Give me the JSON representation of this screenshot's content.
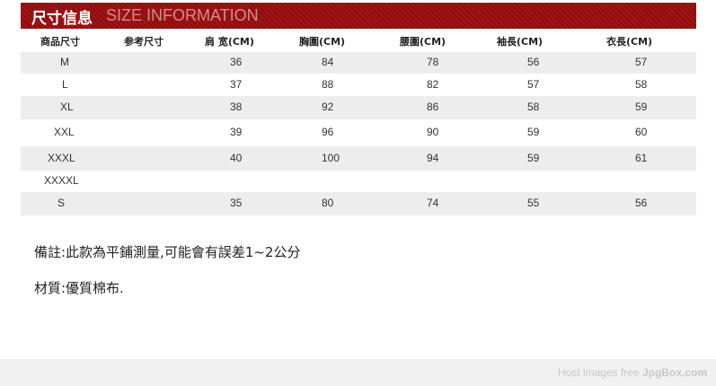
{
  "banner": {
    "title_cn": "尺寸信息",
    "title_en": "SIZE INFORMATION",
    "color": "#9a1214"
  },
  "columns": [
    "商品尺寸",
    "参考尺寸",
    "肩 宽(CM)",
    "胸圍(CM)",
    "腰圍(CM)",
    "袖長(CM)",
    "衣長(CM)"
  ],
  "rows": [
    {
      "size": "M",
      "shoulder": "36",
      "chest": "84",
      "waist": "78",
      "sleeve": "56",
      "length": "57"
    },
    {
      "size": "L",
      "shoulder": "37",
      "chest": "88",
      "waist": "82",
      "sleeve": "57",
      "length": "58"
    },
    {
      "size": "XL",
      "shoulder": "38",
      "chest": "92",
      "waist": "86",
      "sleeve": "58",
      "length": "59"
    },
    {
      "size": "XXL",
      "shoulder": "39",
      "chest": "96",
      "waist": "90",
      "sleeve": "59",
      "length": "60"
    },
    {
      "size": "XXXL",
      "shoulder": "40",
      "chest": "100",
      "waist": "94",
      "sleeve": "59",
      "length": "61"
    },
    {
      "size": "XXXXL",
      "shoulder": "",
      "chest": "",
      "waist": "",
      "sleeve": "",
      "length": ""
    },
    {
      "size": "S",
      "shoulder": "35",
      "chest": "80",
      "waist": "74",
      "sleeve": "55",
      "length": "56"
    }
  ],
  "notes": {
    "remark": "備註:此款為平鋪測量,可能會有誤差1~2公分",
    "material": "材質:優質棉布."
  },
  "footer": {
    "text": "Host images free ",
    "brand": "JpgBox.com"
  }
}
